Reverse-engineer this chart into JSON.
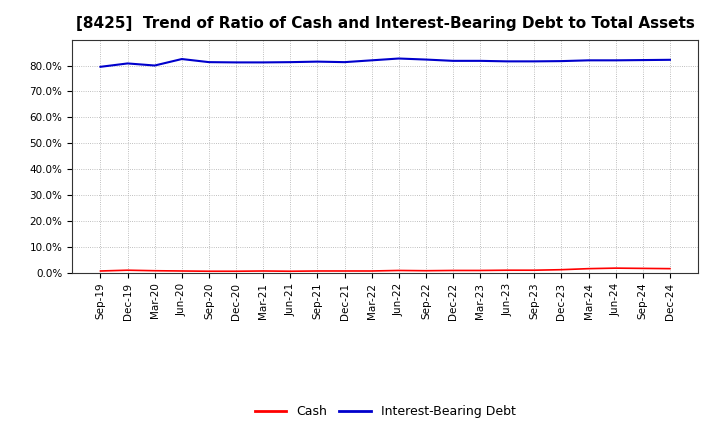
{
  "title": "[8425]  Trend of Ratio of Cash and Interest-Bearing Debt to Total Assets",
  "x_labels": [
    "Sep-19",
    "Dec-19",
    "Mar-20",
    "Jun-20",
    "Sep-20",
    "Dec-20",
    "Mar-21",
    "Jun-21",
    "Sep-21",
    "Dec-21",
    "Mar-22",
    "Jun-22",
    "Sep-22",
    "Dec-22",
    "Mar-23",
    "Jun-23",
    "Sep-23",
    "Dec-23",
    "Mar-24",
    "Jun-24",
    "Sep-24",
    "Dec-24"
  ],
  "cash": [
    0.007,
    0.01,
    0.008,
    0.007,
    0.006,
    0.006,
    0.007,
    0.006,
    0.007,
    0.007,
    0.007,
    0.009,
    0.008,
    0.009,
    0.009,
    0.01,
    0.01,
    0.012,
    0.016,
    0.018,
    0.017,
    0.016
  ],
  "interest_bearing_debt": [
    0.795,
    0.808,
    0.8,
    0.825,
    0.813,
    0.812,
    0.812,
    0.813,
    0.815,
    0.813,
    0.82,
    0.827,
    0.823,
    0.818,
    0.818,
    0.816,
    0.816,
    0.817,
    0.82,
    0.82,
    0.821,
    0.822
  ],
  "ylim": [
    0.0,
    0.9
  ],
  "yticks": [
    0.0,
    0.1,
    0.2,
    0.3,
    0.4,
    0.5,
    0.6,
    0.7,
    0.8
  ],
  "cash_color": "#ff0000",
  "debt_color": "#0000cc",
  "cash_label": "Cash",
  "debt_label": "Interest-Bearing Debt",
  "background_color": "#ffffff",
  "grid_color": "#aaaaaa",
  "title_fontsize": 11,
  "tick_fontsize": 7.5,
  "legend_fontsize": 9
}
